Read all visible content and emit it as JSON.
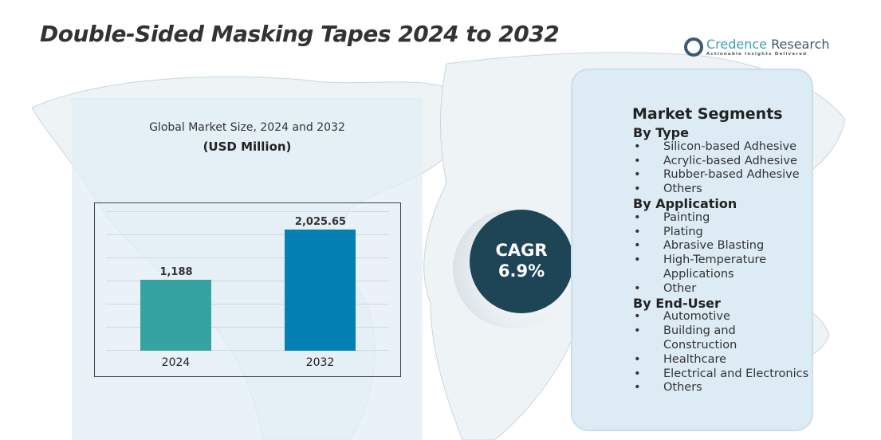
{
  "title": "Double-Sided Masking Tapes 2024 to 2032",
  "logo": {
    "name_a": "Credence",
    "name_b": " Research",
    "tagline": "Actionable Insights Delivered"
  },
  "chart_data": {
    "type": "bar",
    "title": "Global Market Size, 2024 and 2032",
    "ylabel": "(USD Million)",
    "categories": [
      "2024",
      "2032"
    ],
    "values": [
      1188,
      2025.65
    ],
    "value_labels": [
      "1,188",
      "2,025.65"
    ],
    "colors": [
      "#35a3a2",
      "#0580b2"
    ],
    "grid": true
  },
  "cagr": {
    "label": "CAGR",
    "value": "6.9%"
  },
  "segments": {
    "heading": "Market Segments",
    "groups": [
      {
        "name": "By Type",
        "items": [
          "Silicon-based Adhesive",
          "Acrylic-based Adhesive",
          "Rubber-based Adhesive",
          "Others"
        ]
      },
      {
        "name": "By Application",
        "items": [
          "Painting",
          "Plating",
          "Abrasive Blasting",
          "High-Temperature Applications",
          "Other"
        ]
      },
      {
        "name": "By End-User",
        "items": [
          "Automotive",
          "Building and Construction",
          "Healthcare",
          "Electrical and Electronics",
          "Others"
        ]
      }
    ]
  }
}
